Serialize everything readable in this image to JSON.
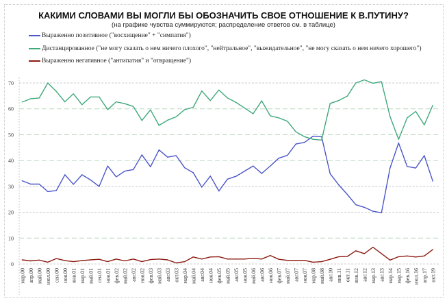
{
  "chart_data": {
    "type": "line",
    "title": "КАКИМИ СЛОВАМИ ВЫ МОГЛИ БЫ ОБОЗНАЧИТЬ СВОЕ ОТНОШЕНИЕ К В.ПУТИНУ?",
    "subtitle": "(на графике чувства суммируются; распределение ответов см. в таблице)",
    "xlabel": "",
    "ylabel": "",
    "ylim": [
      0,
      70
    ],
    "yticks": [
      "0",
      "10",
      "20",
      "30",
      "40",
      "50",
      "60",
      "70"
    ],
    "grid": true,
    "legend": "top-left",
    "categories": [
      "мар.00",
      "апр.00",
      "май.00",
      "июл.00",
      "сен.00",
      "ноя.00",
      "янв.01",
      "мар.01",
      "май.01",
      "сен.01",
      "ноя.01",
      "фев.02",
      "май.02",
      "авг.02",
      "ноя.02",
      "фев.03",
      "май.03",
      "авг.03",
      "окт.03",
      "мар.04",
      "май.04",
      "авг.04",
      "ноя.04",
      "фев.05",
      "май.05",
      "авг.05",
      "ноя.05",
      "май.06",
      "авг.06",
      "ноя.06",
      "фев.07",
      "май.07",
      "авг.07",
      "ноя.07",
      "мар.08",
      "май.08",
      "авг.10",
      "янв.11",
      "окт.11",
      "янв.12",
      "авг.12",
      "мар.13",
      "авг.13",
      "мар.14",
      "мар.15",
      "фев.16",
      "июл.16",
      "апр.17",
      "окт.19"
    ],
    "series": [
      {
        "name": "Выраженно позитивное (\"восхищение\" + \"симпатия\")",
        "color": "#4a55c8",
        "values": [
          32.2,
          30.9,
          30.9,
          28.0,
          28.4,
          34.5,
          30.8,
          34.5,
          32.5,
          30.0,
          37.9,
          33.7,
          35.9,
          36.5,
          42.2,
          37.6,
          44.1,
          41.3,
          41.9,
          37.2,
          35.3,
          29.7,
          34.0,
          28.2,
          32.8,
          33.9,
          35.9,
          37.9,
          35.0,
          37.9,
          40.9,
          42.0,
          46.4,
          47.0,
          49.4,
          49.2,
          34.9,
          30.6,
          26.9,
          22.9,
          21.9,
          20.4,
          19.8,
          37.1,
          46.8,
          37.7,
          37.1,
          41.9,
          32.0
        ]
      },
      {
        "name": "Дистанцированное (\"не могу сказать о нем ничего плохого\", \"нейтральное\", \"выжидательное\", \"не могу сказать о нем ничего хорошего\")",
        "color": "#3fa87a",
        "values": [
          62.6,
          63.9,
          64.2,
          70.0,
          66.7,
          62.7,
          65.8,
          61.6,
          64.6,
          64.6,
          59.7,
          62.7,
          62.0,
          60.9,
          55.5,
          59.6,
          53.6,
          55.6,
          56.9,
          59.7,
          60.6,
          66.9,
          63.2,
          67.3,
          64.2,
          62.5,
          60.3,
          58.1,
          63.1,
          57.3,
          56.5,
          55.2,
          51.1,
          49.2,
          48.2,
          47.9,
          62.1,
          63.2,
          64.9,
          70.0,
          71.2,
          69.9,
          70.5,
          57.0,
          48.2,
          56.5,
          59.0,
          53.8,
          61.4
        ]
      },
      {
        "name": "Выраженно негативное (\"антипатия\" и \"отвращение\")",
        "color": "#8b1a10",
        "values": [
          1.6,
          1.2,
          1.5,
          0.7,
          2.1,
          1.3,
          0.9,
          1.3,
          1.6,
          1.8,
          0.9,
          1.9,
          1.2,
          1.9,
          0.9,
          1.7,
          1.9,
          1.6,
          0.4,
          0.9,
          2.7,
          1.9,
          2.7,
          2.8,
          1.9,
          1.9,
          1.9,
          2.2,
          1.9,
          3.3,
          1.8,
          1.4,
          1.4,
          1.4,
          0.7,
          0.9,
          1.8,
          2.8,
          2.9,
          5.1,
          4.0,
          6.5,
          4.0,
          1.5,
          2.8,
          3.1,
          2.7,
          3.1,
          5.6
        ]
      }
    ]
  }
}
